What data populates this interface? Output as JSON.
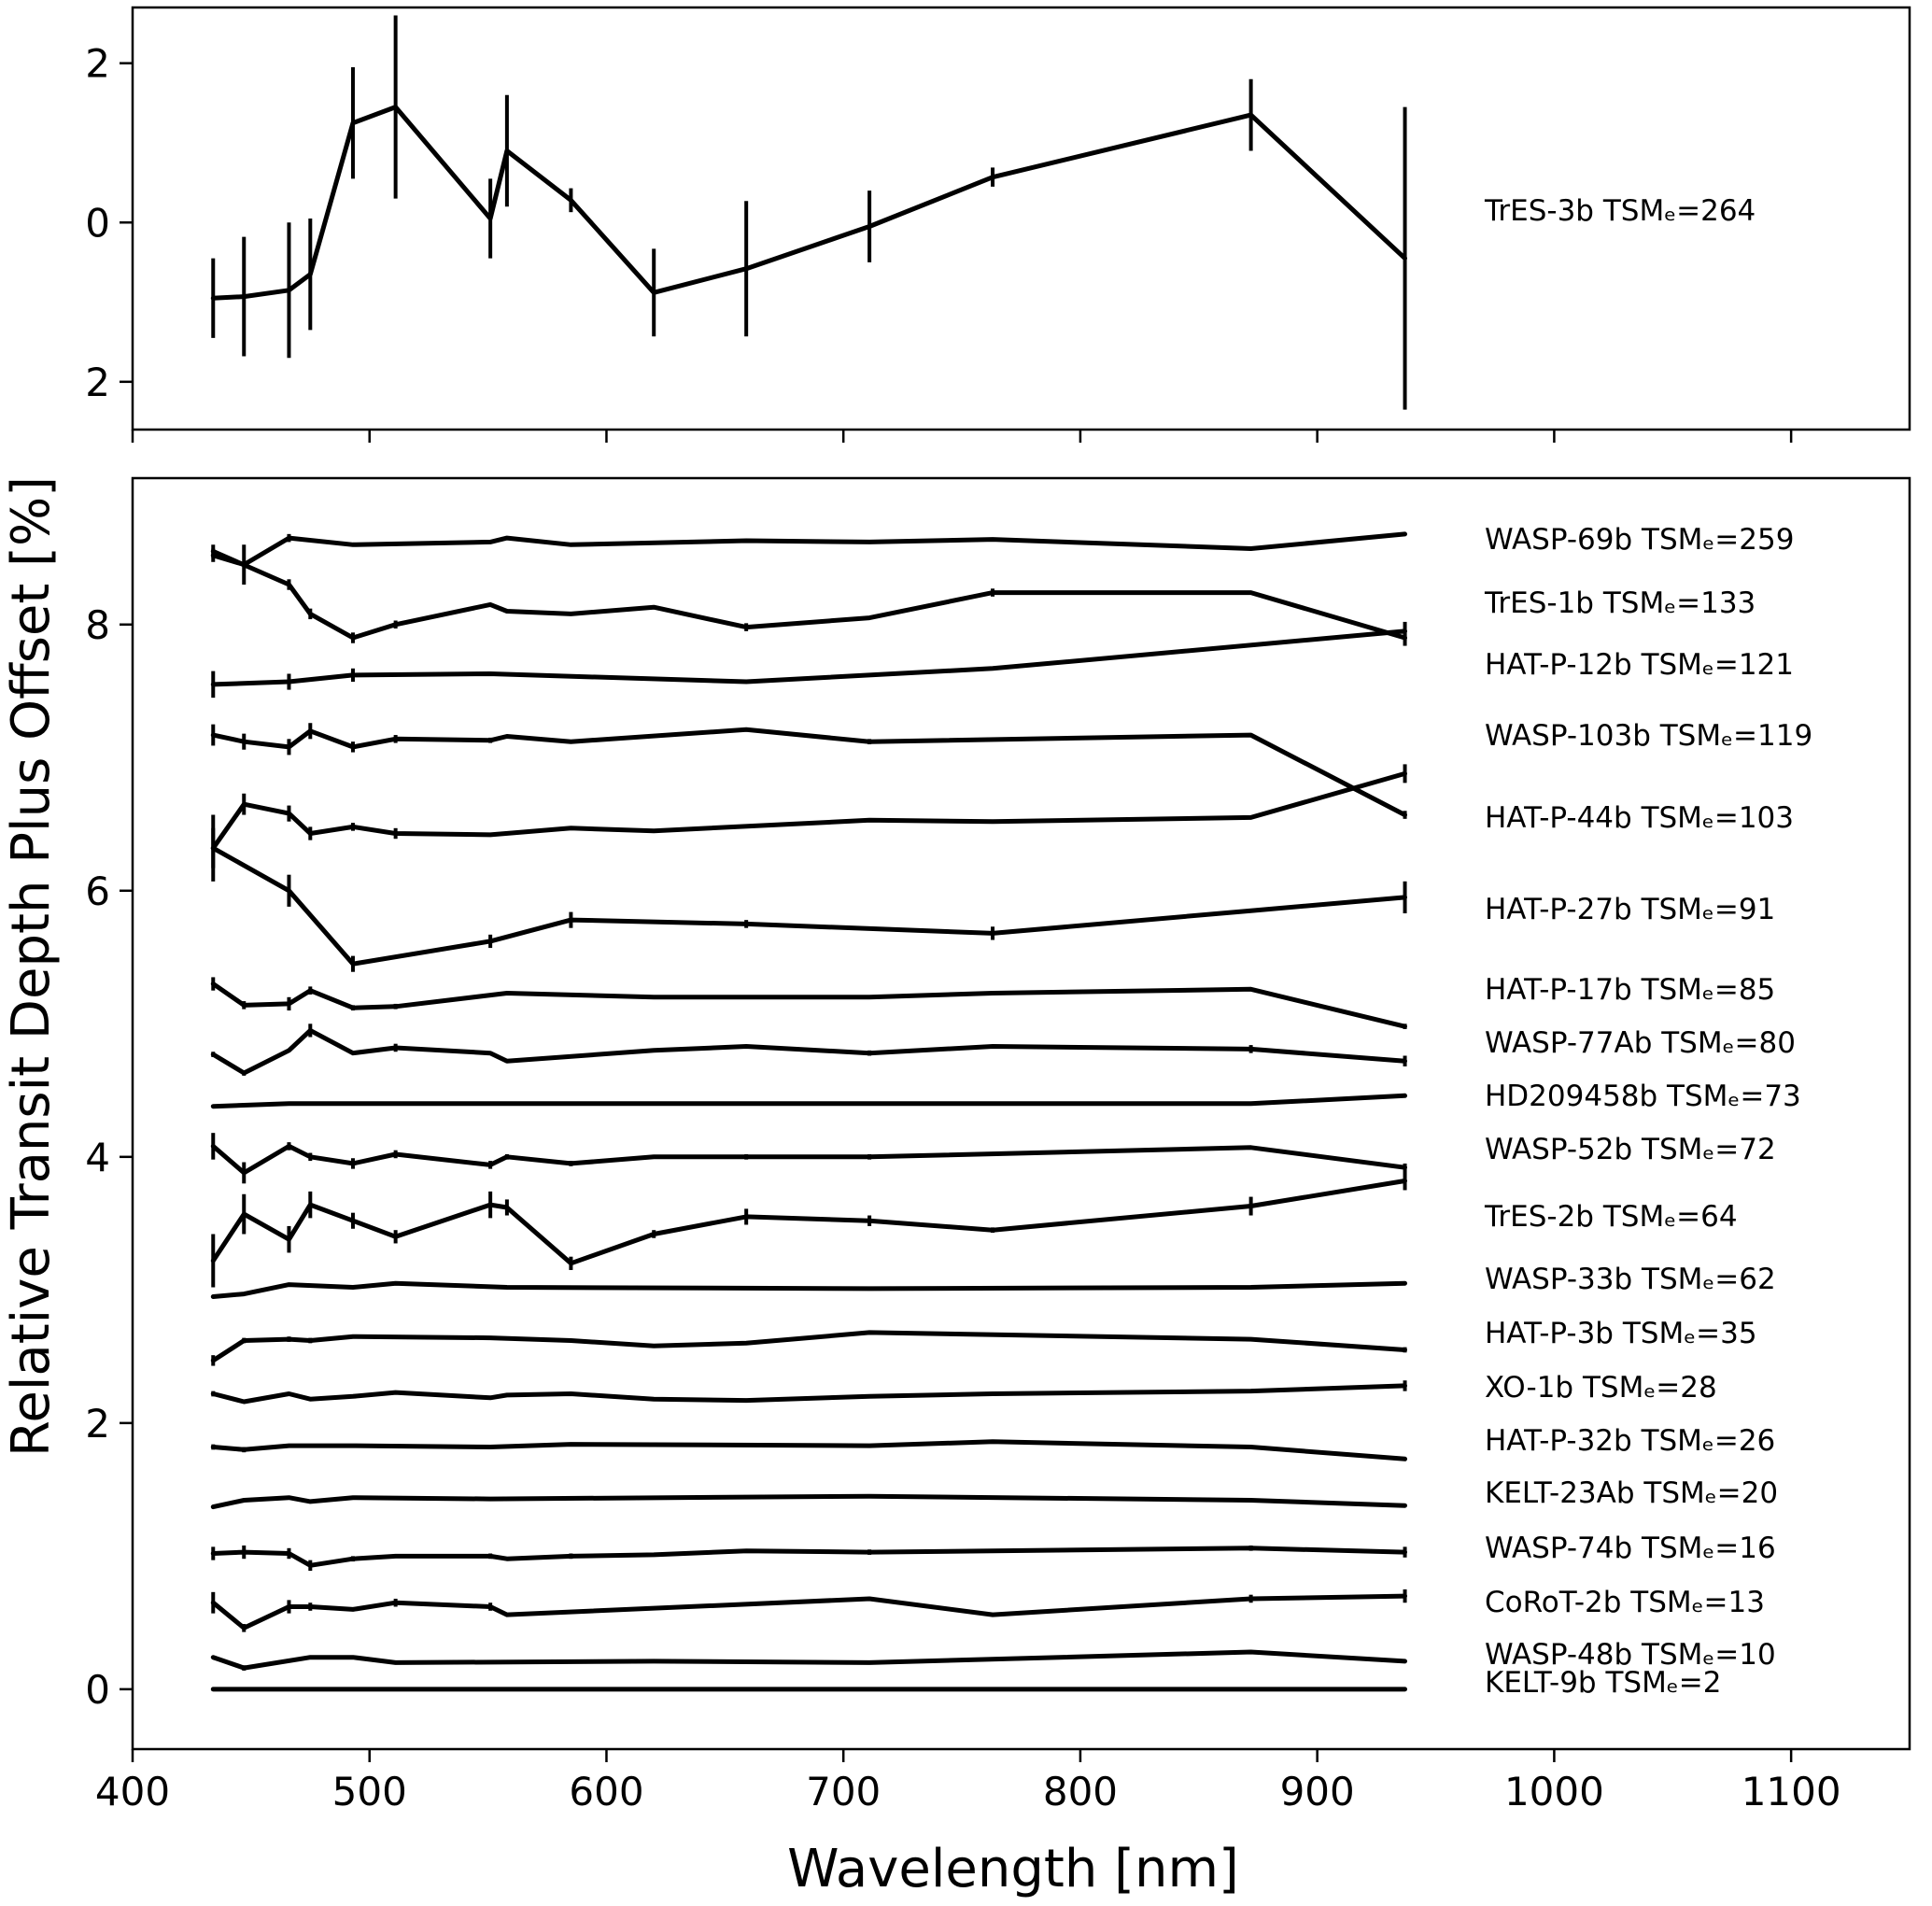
{
  "chart_data": {
    "type": "line",
    "xlabel": "Wavelength [nm]",
    "ylabel": "Relative Transit Depth Plus Offset [%]",
    "xlim": [
      400,
      1150
    ],
    "xticks": [
      400,
      500,
      600,
      700,
      800,
      900,
      1000,
      1100
    ],
    "top_panel": {
      "ylim": [
        -2.6,
        2.7
      ],
      "yticks": [
        2,
        0,
        -2
      ],
      "ytick_labels": [
        "2",
        "0",
        "2"
      ],
      "series": {
        "name": "TrES-3b",
        "label": "TrES-3b TSMₑ=264",
        "x": [
          434,
          447,
          466,
          475,
          493,
          511,
          551,
          558,
          585,
          620,
          659,
          711,
          763,
          872,
          937
        ],
        "y": [
          -0.95,
          -0.93,
          -0.85,
          -0.65,
          1.25,
          1.45,
          0.05,
          0.9,
          0.28,
          -0.88,
          -0.58,
          -0.05,
          0.57,
          1.35,
          -0.45
        ],
        "err": [
          0.5,
          0.75,
          0.85,
          0.7,
          0.7,
          1.15,
          0.5,
          0.7,
          0.15,
          0.55,
          0.85,
          0.45,
          0.12,
          0.45,
          1.9
        ]
      }
    },
    "bottom_panel": {
      "ylim": [
        -0.45,
        9.1
      ],
      "yticks": [
        0,
        2,
        4,
        6,
        8
      ],
      "ytick_labels": [
        "0",
        "2",
        "4",
        "6",
        "8"
      ],
      "series": [
        {
          "name": "WASP-69b",
          "label": "WASP-69b TSMₑ=259",
          "x": [
            434,
            447,
            466,
            493,
            551,
            558,
            585,
            659,
            711,
            763,
            872,
            937
          ],
          "y": [
            8.52,
            8.45,
            8.65,
            8.6,
            8.62,
            8.65,
            8.6,
            8.63,
            8.62,
            8.64,
            8.57,
            8.68
          ],
          "err": [
            0.05,
            0.15,
            0.03,
            0,
            0,
            0,
            0,
            0,
            0,
            0,
            0,
            0
          ]
        },
        {
          "name": "TrES-1b",
          "label": "TrES-1b TSMₑ=133",
          "x": [
            434,
            466,
            475,
            493,
            511,
            551,
            558,
            585,
            620,
            659,
            711,
            763,
            872,
            937
          ],
          "y": [
            8.55,
            8.3,
            8.08,
            7.9,
            8.0,
            8.15,
            8.1,
            8.08,
            8.13,
            7.98,
            8.05,
            8.24,
            8.24,
            7.9
          ],
          "err": [
            0.05,
            0.04,
            0.04,
            0.04,
            0.03,
            0,
            0,
            0,
            0,
            0.03,
            0,
            0.03,
            0,
            0.06
          ]
        },
        {
          "name": "HAT-P-12b",
          "label": "HAT-P-12b TSMₑ=121",
          "x": [
            434,
            466,
            493,
            551,
            659,
            763,
            937
          ],
          "y": [
            7.55,
            7.57,
            7.62,
            7.63,
            7.57,
            7.67,
            7.95
          ],
          "err": [
            0.1,
            0.06,
            0.05,
            0,
            0,
            0,
            0.07
          ]
        },
        {
          "name": "WASP-103b",
          "label": "WASP-103b TSMₑ=119",
          "x": [
            434,
            447,
            466,
            475,
            493,
            511,
            551,
            558,
            585,
            659,
            711,
            872,
            937
          ],
          "y": [
            7.17,
            7.12,
            7.08,
            7.2,
            7.08,
            7.14,
            7.13,
            7.16,
            7.12,
            7.21,
            7.12,
            7.17,
            6.57
          ],
          "err": [
            0.08,
            0.06,
            0.06,
            0.06,
            0.04,
            0.03,
            0.02,
            0,
            0,
            0,
            0.02,
            0,
            0.03
          ]
        },
        {
          "name": "HAT-P-44b",
          "label": "HAT-P-44b TSMₑ=103",
          "x": [
            434,
            447,
            466,
            475,
            493,
            511,
            551,
            585,
            620,
            711,
            763,
            872,
            937
          ],
          "y": [
            6.32,
            6.65,
            6.58,
            6.43,
            6.48,
            6.43,
            6.42,
            6.47,
            6.45,
            6.53,
            6.52,
            6.55,
            6.88
          ],
          "err": [
            0.25,
            0.08,
            0.06,
            0.05,
            0.03,
            0.04,
            0,
            0,
            0,
            0,
            0,
            0,
            0.07
          ]
        },
        {
          "name": "HAT-P-27b",
          "label": "HAT-P-27b TSMₑ=91",
          "x": [
            434,
            466,
            493,
            551,
            585,
            659,
            763,
            872,
            937
          ],
          "y": [
            6.32,
            6.0,
            5.45,
            5.62,
            5.78,
            5.75,
            5.68,
            5.85,
            5.95
          ],
          "err": [
            0.15,
            0.12,
            0.06,
            0.05,
            0.06,
            0.03,
            0.05,
            0,
            0.12
          ]
        },
        {
          "name": "HAT-P-17b",
          "label": "HAT-P-17b TSMₑ=85",
          "x": [
            434,
            447,
            466,
            475,
            493,
            511,
            558,
            620,
            711,
            763,
            872,
            937
          ],
          "y": [
            5.3,
            5.14,
            5.15,
            5.25,
            5.12,
            5.13,
            5.23,
            5.2,
            5.2,
            5.23,
            5.26,
            4.98
          ],
          "err": [
            0.05,
            0.03,
            0.05,
            0.03,
            0.02,
            0.02,
            0,
            0,
            0,
            0,
            0,
            0.02
          ]
        },
        {
          "name": "WASP-77Ab",
          "label": "WASP-77Ab TSMₑ=80",
          "x": [
            434,
            447,
            466,
            475,
            493,
            511,
            551,
            558,
            620,
            659,
            711,
            763,
            872,
            937
          ],
          "y": [
            4.77,
            4.63,
            4.8,
            4.95,
            4.78,
            4.82,
            4.78,
            4.72,
            4.8,
            4.83,
            4.78,
            4.83,
            4.81,
            4.72
          ],
          "err": [
            0.02,
            0.02,
            0,
            0.05,
            0,
            0.03,
            0,
            0,
            0,
            0,
            0.02,
            0,
            0.03,
            0.04
          ]
        },
        {
          "name": "HD209458b",
          "label": "HD209458b TSMₑ=73",
          "x": [
            434,
            466,
            551,
            711,
            872,
            937
          ],
          "y": [
            4.38,
            4.4,
            4.4,
            4.4,
            4.4,
            4.46
          ],
          "err": [
            0,
            0,
            0,
            0,
            0,
            0
          ]
        },
        {
          "name": "WASP-52b",
          "label": "WASP-52b TSMₑ=72",
          "x": [
            434,
            447,
            466,
            475,
            493,
            511,
            551,
            558,
            585,
            620,
            659,
            711,
            872,
            937
          ],
          "y": [
            4.08,
            3.88,
            4.08,
            4.0,
            3.95,
            4.02,
            3.94,
            4.0,
            3.95,
            4.0,
            4.0,
            4.0,
            4.07,
            3.92
          ],
          "err": [
            0.1,
            0.08,
            0.03,
            0.03,
            0.04,
            0.03,
            0.03,
            0.02,
            0.02,
            0,
            0.02,
            0.02,
            0,
            0.03
          ]
        },
        {
          "name": "TrES-2b",
          "label": "TrES-2b TSMₑ=64",
          "x": [
            434,
            447,
            466,
            475,
            493,
            511,
            551,
            558,
            585,
            620,
            659,
            711,
            763,
            872,
            937
          ],
          "y": [
            3.22,
            3.57,
            3.38,
            3.64,
            3.52,
            3.4,
            3.64,
            3.62,
            3.2,
            3.42,
            3.55,
            3.52,
            3.45,
            3.63,
            3.82
          ],
          "err": [
            0.2,
            0.15,
            0.1,
            0.1,
            0.06,
            0.05,
            0.1,
            0.06,
            0.05,
            0.03,
            0.06,
            0.04,
            0.02,
            0.07,
            0.07
          ]
        },
        {
          "name": "WASP-33b",
          "label": "WASP-33b TSMₑ=62",
          "x": [
            434,
            447,
            466,
            493,
            511,
            558,
            711,
            872,
            937
          ],
          "y": [
            2.95,
            2.97,
            3.04,
            3.02,
            3.05,
            3.02,
            3.01,
            3.02,
            3.05
          ],
          "err": [
            0,
            0,
            0,
            0,
            0,
            0,
            0,
            0,
            0
          ]
        },
        {
          "name": "HAT-P-3b",
          "label": "HAT-P-3b TSMₑ=35",
          "x": [
            434,
            447,
            466,
            475,
            493,
            551,
            585,
            620,
            659,
            711,
            872,
            937
          ],
          "y": [
            2.47,
            2.62,
            2.63,
            2.62,
            2.65,
            2.64,
            2.62,
            2.58,
            2.6,
            2.68,
            2.63,
            2.55
          ],
          "err": [
            0.04,
            0.02,
            0.02,
            0.02,
            0,
            0,
            0,
            0,
            0,
            0,
            0,
            0.02
          ]
        },
        {
          "name": "XO-1b",
          "label": "XO-1b TSMₑ=28",
          "x": [
            434,
            447,
            466,
            475,
            493,
            511,
            551,
            558,
            585,
            620,
            659,
            711,
            763,
            872,
            937
          ],
          "y": [
            2.22,
            2.16,
            2.22,
            2.18,
            2.2,
            2.23,
            2.19,
            2.21,
            2.22,
            2.18,
            2.17,
            2.2,
            2.22,
            2.24,
            2.28
          ],
          "err": [
            0.02,
            0,
            0,
            0,
            0,
            0,
            0,
            0,
            0,
            0,
            0,
            0,
            0,
            0,
            0.04
          ]
        },
        {
          "name": "HAT-P-32b",
          "label": "HAT-P-32b TSMₑ=26",
          "x": [
            434,
            447,
            466,
            493,
            551,
            585,
            711,
            763,
            872,
            937
          ],
          "y": [
            1.82,
            1.8,
            1.83,
            1.83,
            1.82,
            1.84,
            1.83,
            1.86,
            1.82,
            1.73
          ],
          "err": [
            0.02,
            0.02,
            0,
            0,
            0,
            0,
            0,
            0,
            0,
            0
          ]
        },
        {
          "name": "KELT-23Ab",
          "label": "KELT-23Ab TSMₑ=20",
          "x": [
            434,
            447,
            466,
            475,
            493,
            551,
            711,
            872,
            937
          ],
          "y": [
            1.37,
            1.42,
            1.44,
            1.41,
            1.44,
            1.43,
            1.45,
            1.42,
            1.38
          ],
          "err": [
            0,
            0,
            0,
            0,
            0,
            0,
            0,
            0,
            0
          ]
        },
        {
          "name": "WASP-74b",
          "label": "WASP-74b TSMₑ=16",
          "x": [
            434,
            447,
            466,
            475,
            493,
            511,
            551,
            558,
            585,
            620,
            659,
            711,
            872,
            937
          ],
          "y": [
            1.02,
            1.03,
            1.02,
            0.93,
            0.98,
            1.0,
            1.0,
            0.98,
            1.0,
            1.01,
            1.04,
            1.03,
            1.06,
            1.03
          ],
          "err": [
            0.05,
            0.05,
            0.04,
            0.04,
            0.02,
            0,
            0.02,
            0,
            0.02,
            0,
            0,
            0.02,
            0.02,
            0.04
          ]
        },
        {
          "name": "CoRoT-2b",
          "label": "CoRoT-2b TSMₑ=13",
          "x": [
            434,
            447,
            466,
            475,
            493,
            511,
            551,
            558,
            711,
            763,
            872,
            937
          ],
          "y": [
            0.65,
            0.46,
            0.62,
            0.62,
            0.6,
            0.65,
            0.62,
            0.56,
            0.68,
            0.56,
            0.68,
            0.7
          ],
          "err": [
            0.08,
            0.03,
            0.05,
            0.03,
            0,
            0.03,
            0.03,
            0,
            0,
            0,
            0.03,
            0.05
          ]
        },
        {
          "name": "WASP-48b",
          "label": "WASP-48b TSMₑ=10",
          "x": [
            434,
            447,
            475,
            493,
            511,
            620,
            711,
            872,
            937
          ],
          "y": [
            0.24,
            0.16,
            0.24,
            0.24,
            0.2,
            0.21,
            0.2,
            0.28,
            0.21
          ],
          "err": [
            0,
            0.02,
            0,
            0,
            0,
            0,
            0,
            0,
            0
          ]
        },
        {
          "name": "KELT-9b",
          "label": "KELT-9b TSMₑ=2",
          "x": [
            434,
            937
          ],
          "y": [
            0.0,
            0.0
          ],
          "err": [
            0,
            0
          ]
        }
      ]
    }
  }
}
